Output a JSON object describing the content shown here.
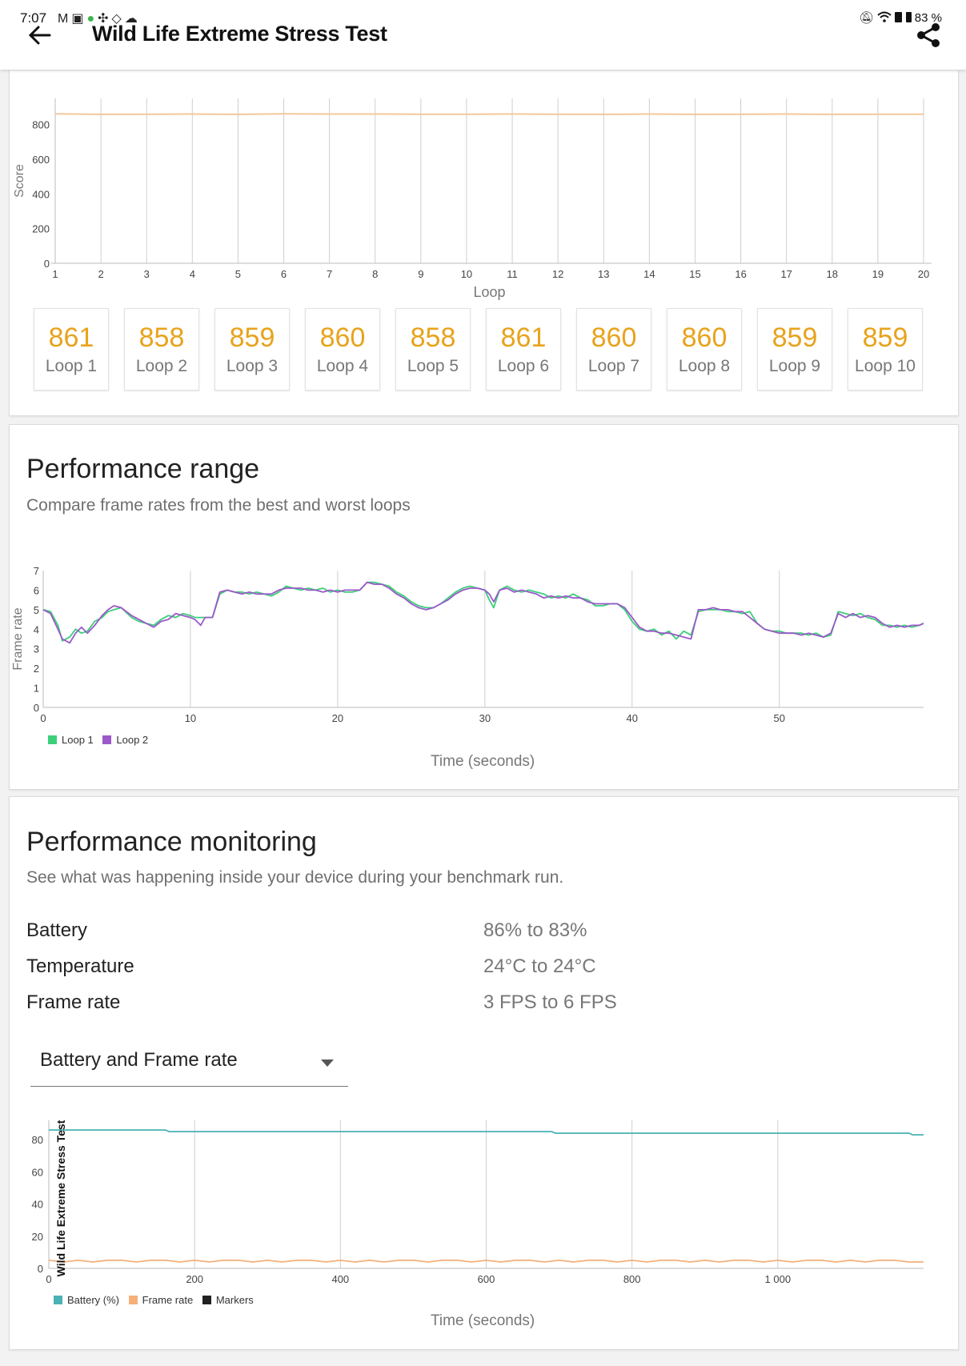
{
  "status_bar": {
    "time": "7:07",
    "battery": "83 %",
    "left_icons": [
      "gmail-icon",
      "calendar-icon",
      "shield-icon",
      "fan-icon",
      "security-icon",
      "cloud-icon"
    ],
    "right_icons": [
      "mute-icon",
      "wifi-icon",
      "sim-icon",
      "battery-icon"
    ]
  },
  "header": {
    "title": "Wild Life Extreme Stress Test",
    "back_icon": "arrow-left-icon",
    "share_icon": "share-icon"
  },
  "colors": {
    "accent_orange": "#e8a31c",
    "score_line": "#f2c89a",
    "loop1": "#3ccf7a",
    "loop2": "#9b59c9",
    "battery": "#4ab1b4",
    "framerate": "#f4b07a",
    "markers": "#222222"
  },
  "score_chart": {
    "ylabel": "Score",
    "xlabel": "Loop",
    "yticks": [
      "0",
      "200",
      "400",
      "600",
      "800"
    ],
    "xticks": [
      "1",
      "2",
      "3",
      "4",
      "5",
      "6",
      "7",
      "8",
      "9",
      "10",
      "11",
      "12",
      "13",
      "14",
      "15",
      "16",
      "17",
      "18",
      "19",
      "20"
    ],
    "chart_data": {
      "type": "line",
      "x": [
        1,
        2,
        3,
        4,
        5,
        6,
        7,
        8,
        9,
        10,
        11,
        12,
        13,
        14,
        15,
        16,
        17,
        18,
        19,
        20
      ],
      "values": [
        861,
        858,
        859,
        860,
        858,
        861,
        860,
        860,
        859,
        859,
        860,
        859,
        858,
        860,
        858,
        859,
        860,
        858,
        859,
        859
      ],
      "ylim": [
        0,
        950
      ]
    }
  },
  "loops": [
    {
      "score": "861",
      "label": "Loop 1"
    },
    {
      "score": "858",
      "label": "Loop 2"
    },
    {
      "score": "859",
      "label": "Loop 3"
    },
    {
      "score": "860",
      "label": "Loop 4"
    },
    {
      "score": "858",
      "label": "Loop 5"
    },
    {
      "score": "861",
      "label": "Loop 6"
    },
    {
      "score": "860",
      "label": "Loop 7"
    },
    {
      "score": "860",
      "label": "Loop 8"
    },
    {
      "score": "859",
      "label": "Loop 9"
    },
    {
      "score": "859",
      "label": "Loop 10"
    }
  ],
  "performance_range": {
    "title": "Performance range",
    "subtitle": "Compare frame rates from the best and worst loops",
    "ylabel": "Frame rate",
    "xlabel": "Time (seconds)",
    "yticks": [
      "0",
      "1",
      "2",
      "3",
      "4",
      "5",
      "6",
      "7"
    ],
    "xticks": [
      "0",
      "10",
      "20",
      "30",
      "40",
      "50"
    ],
    "legend": [
      "Loop 1",
      "Loop 2"
    ],
    "chart_data": {
      "type": "line",
      "xlim": [
        0,
        59.8
      ],
      "ylim": [
        0,
        7
      ],
      "series": [
        {
          "name": "Loop 1",
          "x": [
            0,
            0.5,
            1,
            1.3,
            1.8,
            2.2,
            2.6,
            3,
            3.5,
            4,
            4.4,
            4.8,
            5.3,
            6,
            6.5,
            7,
            7.5,
            8,
            8.5,
            9,
            9.5,
            10,
            10.3,
            10.7,
            11,
            11.5,
            12,
            12.5,
            13,
            13.5,
            14,
            14.5,
            15,
            15.5,
            16,
            16.5,
            17,
            17.5,
            18,
            18.5,
            19,
            19.5,
            20,
            20.5,
            21,
            21.5,
            22,
            22.5,
            23,
            23.5,
            24,
            24.5,
            25,
            25.5,
            26,
            26.5,
            27,
            27.5,
            28,
            28.5,
            29,
            29.5,
            30,
            30.3,
            30.6,
            31,
            31.5,
            32,
            32.5,
            33,
            33.5,
            34,
            34.5,
            35,
            35.5,
            36,
            36.5,
            37,
            37.5,
            38,
            38.5,
            39,
            39.5,
            40,
            40.5,
            41,
            41.5,
            42,
            42.5,
            43,
            43.5,
            44,
            44.5,
            45,
            45.5,
            46,
            46.5,
            47,
            47.5,
            48,
            48.5,
            49,
            49.5,
            50,
            50.5,
            51,
            51.5,
            52,
            52.5,
            53,
            53.5,
            54,
            54.5,
            55,
            55.5,
            56,
            56.5,
            57,
            57.5,
            58,
            58.5,
            59,
            59.5,
            59.8
          ],
          "y": [
            5.0,
            4.9,
            4.2,
            3.4,
            3.6,
            4.0,
            3.8,
            3.9,
            4.4,
            4.6,
            4.9,
            5.0,
            5.1,
            4.6,
            4.4,
            4.3,
            4.2,
            4.5,
            4.7,
            4.6,
            4.8,
            4.7,
            4.6,
            4.6,
            4.6,
            4.6,
            5.8,
            6.0,
            5.9,
            5.9,
            5.8,
            5.9,
            5.8,
            5.7,
            5.9,
            6.2,
            6.1,
            6.0,
            6.1,
            6.0,
            6.1,
            5.9,
            6.0,
            5.9,
            5.9,
            6.0,
            6.4,
            6.4,
            6.3,
            6.2,
            5.9,
            5.7,
            5.4,
            5.2,
            5.1,
            5.1,
            5.3,
            5.6,
            5.9,
            6.1,
            6.2,
            6.1,
            6.0,
            5.5,
            5.1,
            6.0,
            6.2,
            6.0,
            5.9,
            6.0,
            5.9,
            5.8,
            5.6,
            5.7,
            5.6,
            5.8,
            5.6,
            5.5,
            5.2,
            5.2,
            5.3,
            5.3,
            5.0,
            4.4,
            4.0,
            3.9,
            4.0,
            3.7,
            3.9,
            3.5,
            3.9,
            3.7,
            4.9,
            5.0,
            5.0,
            5.0,
            4.9,
            4.9,
            4.8,
            4.9,
            4.3,
            4.0,
            3.9,
            3.9,
            3.8,
            3.8,
            3.8,
            3.7,
            3.8,
            3.6,
            3.7,
            4.9,
            4.8,
            4.7,
            4.8,
            4.6,
            4.5,
            4.2,
            4.2,
            4.1,
            4.2,
            4.1,
            4.2,
            4.3
          ]
        },
        {
          "name": "Loop 2",
          "x": [
            0,
            0.5,
            1,
            1.3,
            1.8,
            2.2,
            2.6,
            3,
            3.5,
            4,
            4.4,
            4.8,
            5.3,
            6,
            6.5,
            7,
            7.5,
            8,
            8.5,
            9,
            9.5,
            10,
            10.3,
            10.7,
            11,
            11.5,
            12,
            12.5,
            13,
            13.5,
            14,
            14.5,
            15,
            15.5,
            16,
            16.5,
            17,
            17.5,
            18,
            18.5,
            19,
            19.5,
            20,
            20.5,
            21,
            21.5,
            22,
            22.5,
            23,
            23.5,
            24,
            24.5,
            25,
            25.5,
            26,
            26.5,
            27,
            27.5,
            28,
            28.5,
            29,
            29.5,
            30,
            30.3,
            30.6,
            31,
            31.5,
            32,
            32.5,
            33,
            33.5,
            34,
            34.5,
            35,
            35.5,
            36,
            36.5,
            37,
            37.5,
            38,
            38.5,
            39,
            39.5,
            40,
            40.5,
            41,
            41.5,
            42,
            42.5,
            43,
            43.5,
            44,
            44.5,
            45,
            45.5,
            46,
            46.5,
            47,
            47.5,
            48,
            48.5,
            49,
            49.5,
            50,
            50.5,
            51,
            51.5,
            52,
            52.5,
            53,
            53.5,
            54,
            54.5,
            55,
            55.5,
            56,
            56.5,
            57,
            57.5,
            58,
            58.5,
            59,
            59.5,
            59.8
          ],
          "y": [
            5.0,
            4.8,
            4.0,
            3.5,
            3.3,
            3.8,
            4.1,
            3.8,
            4.2,
            4.7,
            5.0,
            5.2,
            5.1,
            4.7,
            4.5,
            4.3,
            4.1,
            4.4,
            4.5,
            4.8,
            4.7,
            4.6,
            4.5,
            4.2,
            4.6,
            4.6,
            5.9,
            6.0,
            5.9,
            5.8,
            5.9,
            5.8,
            5.8,
            5.8,
            6.0,
            6.1,
            6.1,
            6.1,
            6.0,
            6.0,
            5.9,
            6.0,
            5.9,
            6.0,
            6.0,
            6.0,
            6.4,
            6.3,
            6.3,
            6.1,
            5.8,
            5.6,
            5.3,
            5.1,
            5.0,
            5.1,
            5.3,
            5.5,
            5.8,
            6.0,
            6.1,
            6.1,
            6.0,
            5.8,
            5.4,
            6.0,
            6.1,
            5.9,
            6.0,
            5.9,
            5.8,
            5.6,
            5.7,
            5.6,
            5.7,
            5.6,
            5.6,
            5.4,
            5.3,
            5.3,
            5.3,
            5.3,
            5.1,
            4.6,
            4.1,
            3.9,
            3.9,
            3.8,
            3.8,
            3.7,
            3.6,
            3.5,
            5.0,
            5.0,
            5.1,
            5.0,
            5.0,
            4.9,
            4.9,
            4.6,
            4.3,
            4.0,
            3.9,
            3.8,
            3.8,
            3.8,
            3.7,
            3.8,
            3.7,
            3.6,
            3.8,
            4.8,
            4.6,
            4.8,
            4.6,
            4.7,
            4.6,
            4.3,
            4.1,
            4.2,
            4.1,
            4.2,
            4.2,
            4.3
          ]
        }
      ]
    }
  },
  "performance_monitoring": {
    "title": "Performance monitoring",
    "subtitle": "See what was happening inside your device during your benchmark run.",
    "stats": [
      {
        "label": "Battery",
        "value": "86% to 83%"
      },
      {
        "label": "Temperature",
        "value": "24°C to 24°C"
      },
      {
        "label": "Frame rate",
        "value": "3 FPS to 6 FPS"
      }
    ],
    "dropdown_selected": "Battery and Frame rate",
    "chart_title_vertical": "Wild Life Extreme Stress Test",
    "xlabel": "Time (seconds)",
    "yticks": [
      "0",
      "20",
      "40",
      "60",
      "80"
    ],
    "xticks": [
      "0",
      "200",
      "400",
      "600",
      "800",
      "1 000"
    ],
    "legend": [
      "Battery (%)",
      "Frame rate",
      "Markers"
    ],
    "chart_data": {
      "type": "line",
      "xlim": [
        0,
        1200
      ],
      "ylim": [
        0,
        92
      ],
      "series": [
        {
          "name": "Battery (%)",
          "x": [
            0,
            160,
            165,
            400,
            690,
            695,
            1180,
            1185,
            1200
          ],
          "y": [
            86,
            86,
            85,
            85,
            85,
            84,
            84,
            83,
            83
          ]
        },
        {
          "name": "Frame rate",
          "x": [
            0,
            20,
            40,
            60,
            80,
            100,
            120,
            140,
            160,
            180,
            200,
            220,
            240,
            260,
            280,
            300,
            320,
            340,
            360,
            380,
            400,
            420,
            440,
            460,
            480,
            500,
            520,
            540,
            560,
            580,
            600,
            620,
            640,
            660,
            680,
            700,
            720,
            740,
            760,
            780,
            800,
            820,
            840,
            860,
            880,
            900,
            920,
            940,
            960,
            980,
            1000,
            1020,
            1040,
            1060,
            1080,
            1100,
            1120,
            1140,
            1160,
            1180,
            1200
          ],
          "y": [
            5,
            4,
            5,
            4,
            5,
            5,
            4,
            5,
            5,
            4,
            5,
            4,
            5,
            5,
            4,
            5,
            4,
            5,
            5,
            4,
            5,
            4,
            5,
            4,
            5,
            5,
            4,
            5,
            5,
            4,
            5,
            4,
            5,
            5,
            4,
            5,
            4,
            5,
            5,
            4,
            5,
            4,
            5,
            5,
            4,
            5,
            4,
            5,
            5,
            4,
            5,
            4,
            5,
            5,
            4,
            5,
            4,
            5,
            5,
            4,
            4
          ]
        }
      ]
    }
  }
}
